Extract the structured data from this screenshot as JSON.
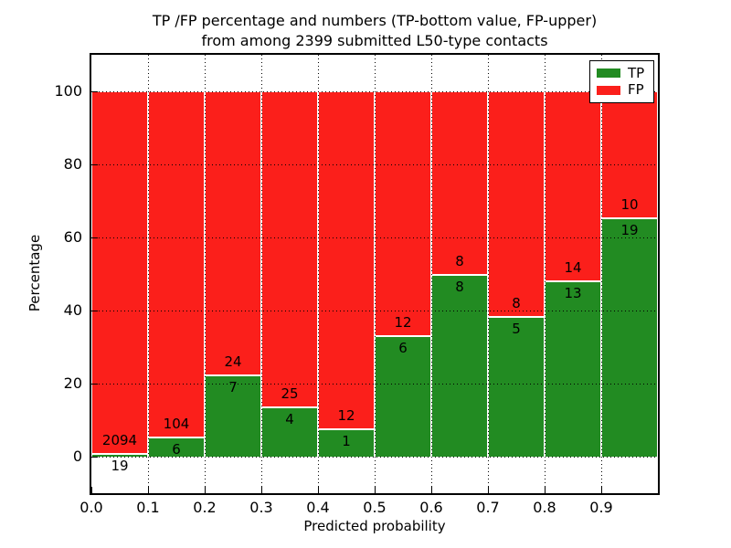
{
  "chart_data": {
    "type": "bar",
    "stacked": true,
    "title": "TP /FP percentage and numbers (TP-bottom value, FP-upper)\nfrom among 2399 submitted L50-type contacts",
    "title_lines": [
      "TP /FP percentage and numbers (TP-bottom value, FP-upper)",
      "from among 2399 submitted L50-type contacts"
    ],
    "xlabel": "Predicted probability",
    "ylabel": "Percentage",
    "xlim": [
      0.0,
      1.0
    ],
    "ylim": [
      -10,
      110
    ],
    "grid": {
      "style": "dotted",
      "color": "#000000"
    },
    "colors": {
      "tp": "#228b22",
      "fp": "#fb1f1b"
    },
    "legend": {
      "position": "upper right",
      "entries": [
        {
          "label": "TP",
          "color": "#228b22"
        },
        {
          "label": "FP",
          "color": "#fb1f1b"
        }
      ]
    },
    "x_ticks": [
      {
        "label": "0.0",
        "value": 0.0
      },
      {
        "label": "0.1",
        "value": 0.1
      },
      {
        "label": "0.2",
        "value": 0.2
      },
      {
        "label": "0.3",
        "value": 0.3
      },
      {
        "label": "0.4",
        "value": 0.4
      },
      {
        "label": "0.5",
        "value": 0.5
      },
      {
        "label": "0.6",
        "value": 0.6
      },
      {
        "label": "0.7",
        "value": 0.7
      },
      {
        "label": "0.8",
        "value": 0.8
      },
      {
        "label": "0.9",
        "value": 0.9
      }
    ],
    "y_ticks": [
      {
        "label": "0",
        "value": 0
      },
      {
        "label": "20",
        "value": 20
      },
      {
        "label": "40",
        "value": 40
      },
      {
        "label": "60",
        "value": 60
      },
      {
        "label": "80",
        "value": 80
      },
      {
        "label": "100",
        "value": 100
      }
    ],
    "bins": [
      {
        "x_range": [
          0.0,
          0.1
        ],
        "tp": 19,
        "fp": 2094
      },
      {
        "x_range": [
          0.1,
          0.2
        ],
        "tp": 6,
        "fp": 104
      },
      {
        "x_range": [
          0.2,
          0.3
        ],
        "tp": 7,
        "fp": 24
      },
      {
        "x_range": [
          0.3,
          0.4
        ],
        "tp": 4,
        "fp": 25
      },
      {
        "x_range": [
          0.4,
          0.5
        ],
        "tp": 1,
        "fp": 12
      },
      {
        "x_range": [
          0.5,
          0.6
        ],
        "tp": 6,
        "fp": 12
      },
      {
        "x_range": [
          0.6,
          0.7
        ],
        "tp": 8,
        "fp": 8
      },
      {
        "x_range": [
          0.7,
          0.8
        ],
        "tp": 5,
        "fp": 8
      },
      {
        "x_range": [
          0.8,
          0.9
        ],
        "tp": 13,
        "fp": 14
      },
      {
        "x_range": [
          0.9,
          1.0
        ],
        "tp": 19,
        "fp": 10
      }
    ]
  }
}
